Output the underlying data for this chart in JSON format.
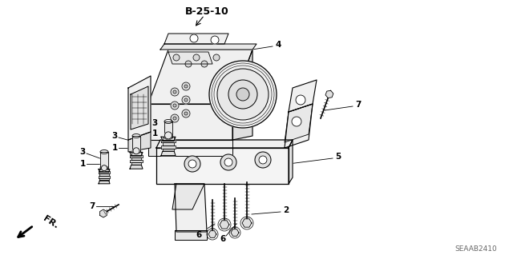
{
  "title": "B-25-10",
  "part_number": "SEAAB2410",
  "bg": "#ffffff",
  "lw_main": 0.9,
  "lw_thin": 0.6,
  "lw_label": 0.7
}
